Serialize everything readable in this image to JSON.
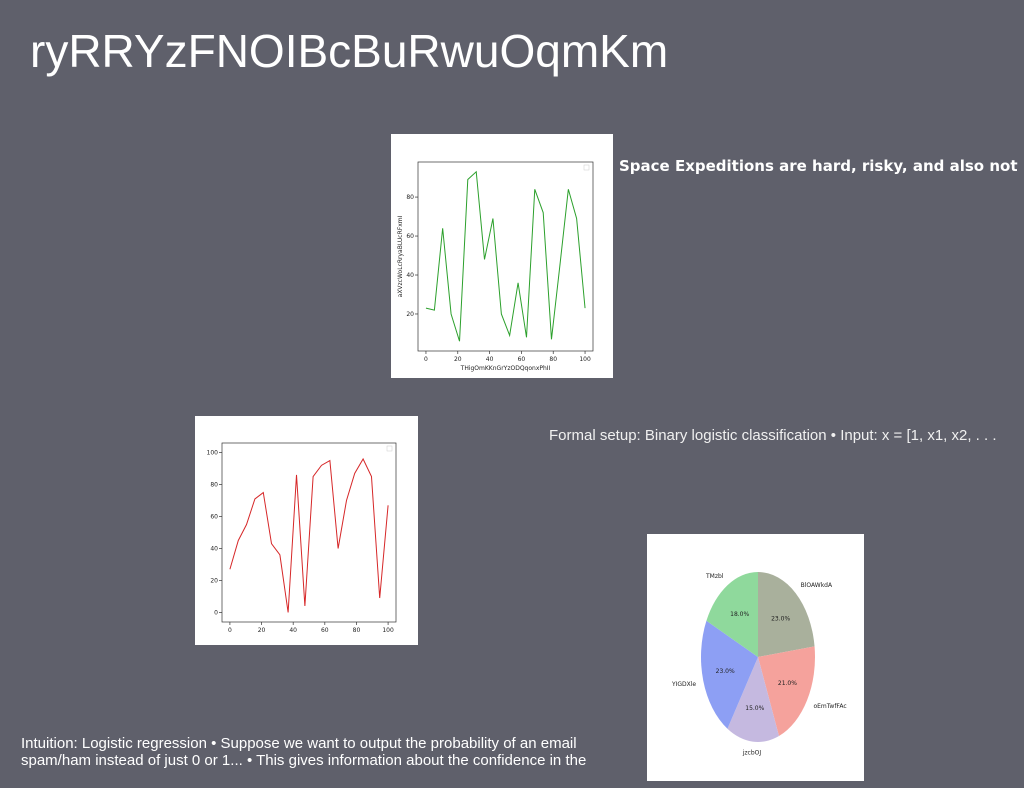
{
  "title": "ryRRYzFNOIBcBuRwuOqmKm",
  "text_blocks": {
    "space": "Space Expeditions are hard, risky, and also not",
    "formal": "Formal setup: Binary logistic classification • Input: x = [1, x1, x2, . . .",
    "intuition": [
      "Intuition: Logistic regression • Suppose we want to output the probability of an email",
      "spam/ham instead of just 0 or 1... • This gives information about the confidence in the"
    ]
  },
  "chart_data": [
    {
      "type": "line",
      "color": "#2ca02c",
      "x_label": "THigOmKKnGrYzODQqonxPhII",
      "y_label": "aXVzcWoLcRryaBLUcRFxmI",
      "x": [
        0,
        5.3,
        10.5,
        15.8,
        21.1,
        26.3,
        31.6,
        36.8,
        42.1,
        47.4,
        52.6,
        57.9,
        63.2,
        68.4,
        73.7,
        78.9,
        84.2,
        89.5,
        94.7,
        100
      ],
      "values": [
        23,
        22,
        64,
        20,
        6,
        89,
        93,
        48,
        69,
        20,
        9,
        36,
        8,
        84,
        72,
        7,
        45,
        84,
        69,
        23
      ],
      "xlim": [
        -5,
        105
      ],
      "ylim": [
        1,
        98
      ],
      "xticks": [
        0,
        20,
        40,
        60,
        80,
        100
      ],
      "yticks": [
        20,
        40,
        60,
        80
      ]
    },
    {
      "type": "line",
      "color": "#d62728",
      "x": [
        0,
        5.3,
        10.5,
        15.8,
        21.1,
        26.3,
        31.6,
        36.8,
        42.1,
        47.4,
        52.6,
        57.9,
        63.2,
        68.4,
        73.7,
        78.9,
        84.2,
        89.5,
        94.7,
        100
      ],
      "values": [
        27,
        45,
        55,
        71,
        75,
        43,
        36,
        0,
        86,
        4,
        85,
        92,
        95,
        40,
        70,
        87,
        96,
        85,
        9,
        67
      ],
      "xlim": [
        -5,
        105
      ],
      "ylim": [
        -6,
        106
      ],
      "xticks": [
        0,
        20,
        40,
        60,
        80,
        100
      ],
      "yticks": [
        0,
        20,
        40,
        60,
        80,
        100
      ]
    },
    {
      "type": "pie",
      "categories": [
        "BlOAWkdA",
        "oEmTwfFAc",
        "jzcbOJ",
        "YIGDXle",
        "TMzbl"
      ],
      "values": [
        23,
        21,
        15,
        23,
        18
      ],
      "value_labels": [
        "23.0%",
        "21.0%",
        "15.0%",
        "23.0%",
        "18.0%"
      ],
      "colors": [
        "#a9b09c",
        "#f5a29c",
        "#c5b9e0",
        "#8d9ff4",
        "#8fd99c"
      ]
    }
  ]
}
